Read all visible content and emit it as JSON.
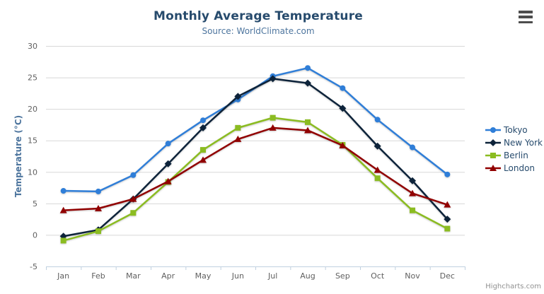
{
  "header": {
    "title": "Monthly Average Temperature",
    "subtitle": "Source: WorldClimate.com"
  },
  "icons": {
    "export_menu": "hamburger-icon"
  },
  "credits": "Highcharts.com",
  "colors": {
    "title": "#274b6d",
    "subtitle": "#4d759e",
    "axis_title": "#4d759e",
    "tick_label": "#606060",
    "gridline": "#d8d8d8",
    "axis_line": "#c0d0e0",
    "legend_text": "#274b6d",
    "credits_text": "#909090"
  },
  "chart_data": {
    "type": "line",
    "title": "Monthly Average Temperature",
    "subtitle": "Source: WorldClimate.com",
    "xlabel": "",
    "ylabel": "Temperature (°C)",
    "ylim": [
      -5,
      30
    ],
    "yticks": [
      -5,
      0,
      5,
      10,
      15,
      20,
      25,
      30
    ],
    "grid": true,
    "legend_position": "right-middle",
    "categories": [
      "Jan",
      "Feb",
      "Mar",
      "Apr",
      "May",
      "Jun",
      "Jul",
      "Aug",
      "Sep",
      "Oct",
      "Nov",
      "Dec"
    ],
    "series": [
      {
        "name": "Tokyo",
        "color": "#2f7ed8",
        "marker": "circle",
        "values": [
          7.0,
          6.9,
          9.5,
          14.5,
          18.2,
          21.5,
          25.2,
          26.5,
          23.3,
          18.3,
          13.9,
          9.6
        ]
      },
      {
        "name": "New York",
        "color": "#0d233a",
        "marker": "diamond",
        "values": [
          -0.2,
          0.8,
          5.7,
          11.3,
          17.0,
          22.0,
          24.8,
          24.1,
          20.1,
          14.1,
          8.6,
          2.5
        ]
      },
      {
        "name": "Berlin",
        "color": "#8bbc21",
        "marker": "square",
        "values": [
          -0.9,
          0.6,
          3.5,
          8.4,
          13.5,
          17.0,
          18.6,
          17.9,
          14.3,
          9.0,
          3.9,
          1.0
        ]
      },
      {
        "name": "London",
        "color": "#910000",
        "marker": "triangle",
        "values": [
          3.9,
          4.2,
          5.7,
          8.5,
          11.9,
          15.2,
          17.0,
          16.6,
          14.2,
          10.3,
          6.6,
          4.8
        ]
      }
    ]
  }
}
